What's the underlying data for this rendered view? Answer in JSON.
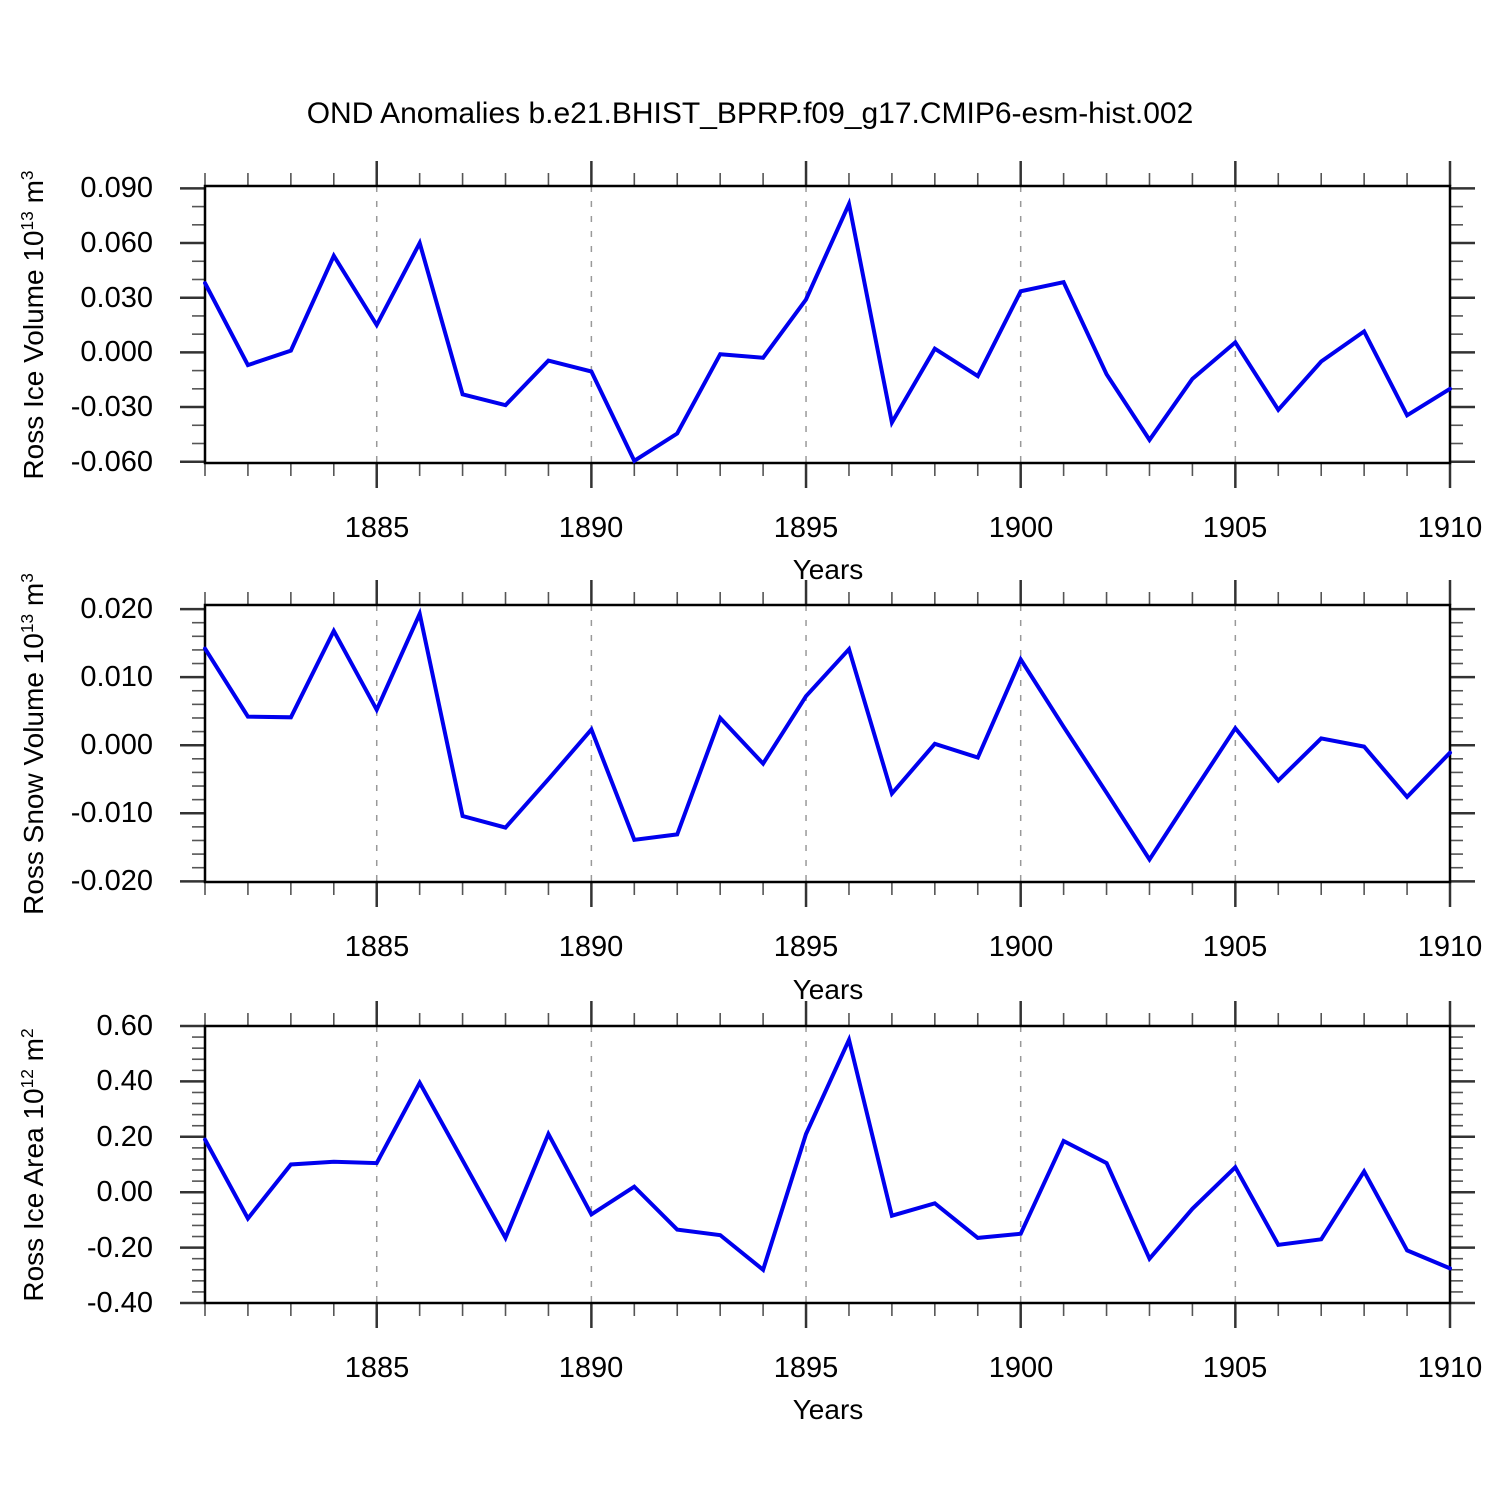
{
  "chart_data": {
    "type": "line",
    "title": "OND Anomalies b.e21.BHIST_BPRP.f09_g17.CMIP6-esm-hist.002",
    "xlabel": "Years",
    "line_color": "#0000EE",
    "grid": "dashed-vertical-at-major-x",
    "legend": "none",
    "xlim": [
      1881,
      1910
    ],
    "x": [
      1881,
      1882,
      1883,
      1884,
      1885,
      1886,
      1887,
      1888,
      1889,
      1890,
      1891,
      1892,
      1893,
      1894,
      1895,
      1896,
      1897,
      1898,
      1899,
      1900,
      1901,
      1902,
      1903,
      1904,
      1905,
      1906,
      1907,
      1908,
      1909,
      1910
    ],
    "x_major_ticks": [
      1885,
      1890,
      1895,
      1900,
      1905,
      1910
    ],
    "x_tick_labels": [
      "1885",
      "1890",
      "1895",
      "1900",
      "1905",
      "1910"
    ],
    "panels": [
      {
        "name": "ross-ice-volume",
        "ylabel_base": "Ross Ice Volume 10",
        "ylabel_exp": "13",
        "ylabel_unit": " m",
        "ylabel_unit_exp": "3",
        "ylim": [
          -0.0607,
          0.0913
        ],
        "y_tick_values": [
          0.09,
          0.06,
          0.03,
          0.0,
          -0.03,
          -0.06
        ],
        "y_tick_labels": [
          "0.090",
          "0.060",
          "0.030",
          "0.000",
          "-0.030",
          "-0.060"
        ],
        "y_minor_step": 0.01,
        "values": [
          0.038,
          -0.007,
          0.001,
          0.053,
          0.015,
          0.06,
          -0.023,
          -0.029,
          -0.0045,
          -0.0105,
          -0.0595,
          -0.0445,
          -0.001,
          -0.003,
          0.029,
          0.0815,
          -0.0385,
          0.002,
          -0.013,
          0.0335,
          0.0385,
          -0.012,
          -0.048,
          -0.0145,
          0.0055,
          -0.0315,
          -0.005,
          0.0115,
          -0.0345,
          -0.02
        ]
      },
      {
        "name": "ross-snow-volume",
        "ylabel_base": "Ross Snow Volume 10",
        "ylabel_exp": "13",
        "ylabel_unit": " m",
        "ylabel_unit_exp": "3",
        "ylim": [
          -0.0201,
          0.0206
        ],
        "y_tick_values": [
          0.02,
          0.01,
          0.0,
          -0.01,
          -0.02
        ],
        "y_tick_labels": [
          "0.020",
          "0.010",
          "0.000",
          "-0.010",
          "-0.020"
        ],
        "y_minor_step": 0.002,
        "values": [
          0.0142,
          0.0042,
          0.0041,
          0.0168,
          0.0052,
          0.0193,
          -0.0104,
          -0.0121,
          -0.005,
          0.0023,
          -0.0139,
          -0.0131,
          0.004,
          -0.0027,
          0.0072,
          0.0141,
          -0.0071,
          0.0002,
          -0.0018,
          0.0126,
          0.0027,
          -0.007,
          -0.0168,
          -0.0071,
          0.0025,
          -0.0052,
          0.001,
          -0.0002,
          -0.0076,
          -0.0011
        ]
      },
      {
        "name": "ross-ice-area",
        "ylabel_base": "Ross Ice Area 10",
        "ylabel_exp": "12",
        "ylabel_unit": " m",
        "ylabel_unit_exp": "2",
        "ylim": [
          -0.4,
          0.6
        ],
        "y_tick_values": [
          0.6,
          0.4,
          0.2,
          0.0,
          -0.2,
          -0.4
        ],
        "y_tick_labels": [
          "0.60",
          "0.40",
          "0.20",
          "0.00",
          "-0.20",
          "-0.40"
        ],
        "y_minor_step": 0.04,
        "values": [
          0.19,
          -0.095,
          0.1,
          0.11,
          0.105,
          0.395,
          0.115,
          -0.165,
          0.21,
          -0.08,
          0.02,
          -0.135,
          -0.155,
          -0.28,
          0.21,
          0.55,
          -0.085,
          -0.04,
          -0.165,
          -0.15,
          0.185,
          0.105,
          -0.24,
          -0.06,
          0.09,
          -0.19,
          -0.17,
          0.075,
          -0.21,
          -0.275
        ]
      }
    ]
  }
}
